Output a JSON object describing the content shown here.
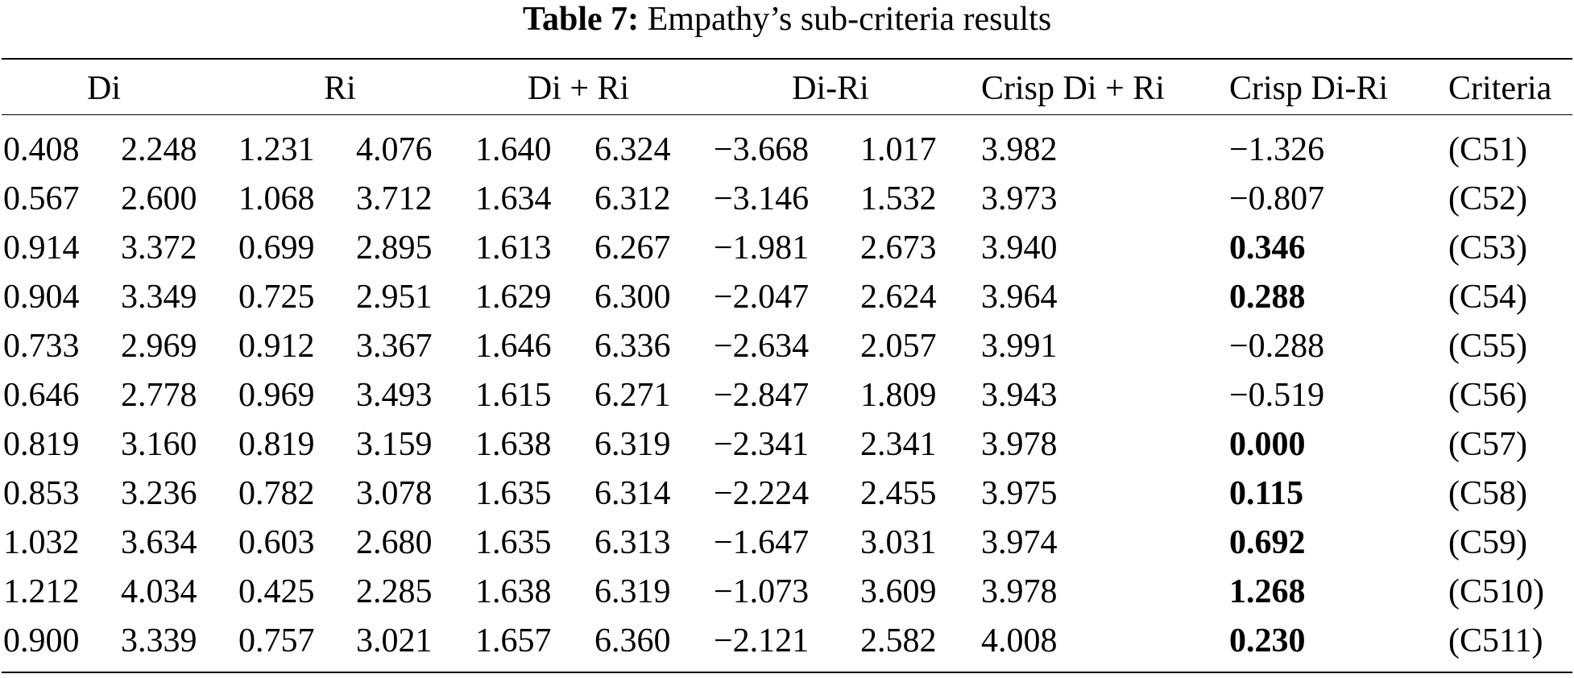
{
  "caption": {
    "label": "Table 7:",
    "text": "Empathy’s sub-criteria results"
  },
  "headers": [
    "Di",
    "Ri",
    "Di + Ri",
    "Di-Ri",
    "Crisp Di + Ri",
    "Crisp Di-Ri",
    "Criteria"
  ],
  "rows": [
    {
      "di": [
        "0.408",
        "2.248"
      ],
      "ri": [
        "1.231",
        "4.076"
      ],
      "dpr": [
        "1.640",
        "6.324"
      ],
      "dmr": [
        "−3.668",
        "1.017"
      ],
      "crisp_dpr": "3.982",
      "crisp_dmr": "−1.326",
      "crisp_dmr_bold": false,
      "criteria": "(C51)"
    },
    {
      "di": [
        "0.567",
        "2.600"
      ],
      "ri": [
        "1.068",
        "3.712"
      ],
      "dpr": [
        "1.634",
        "6.312"
      ],
      "dmr": [
        "−3.146",
        "1.532"
      ],
      "crisp_dpr": "3.973",
      "crisp_dmr": "−0.807",
      "crisp_dmr_bold": false,
      "criteria": "(C52)"
    },
    {
      "di": [
        "0.914",
        "3.372"
      ],
      "ri": [
        "0.699",
        "2.895"
      ],
      "dpr": [
        "1.613",
        "6.267"
      ],
      "dmr": [
        "−1.981",
        "2.673"
      ],
      "crisp_dpr": "3.940",
      "crisp_dmr": "0.346",
      "crisp_dmr_bold": true,
      "criteria": "(C53)"
    },
    {
      "di": [
        "0.904",
        "3.349"
      ],
      "ri": [
        "0.725",
        "2.951"
      ],
      "dpr": [
        "1.629",
        "6.300"
      ],
      "dmr": [
        "−2.047",
        "2.624"
      ],
      "crisp_dpr": "3.964",
      "crisp_dmr": "0.288",
      "crisp_dmr_bold": true,
      "criteria": "(C54)"
    },
    {
      "di": [
        "0.733",
        "2.969"
      ],
      "ri": [
        "0.912",
        "3.367"
      ],
      "dpr": [
        "1.646",
        "6.336"
      ],
      "dmr": [
        "−2.634",
        "2.057"
      ],
      "crisp_dpr": "3.991",
      "crisp_dmr": "−0.288",
      "crisp_dmr_bold": false,
      "criteria": "(C55)"
    },
    {
      "di": [
        "0.646",
        "2.778"
      ],
      "ri": [
        "0.969",
        "3.493"
      ],
      "dpr": [
        "1.615",
        "6.271"
      ],
      "dmr": [
        "−2.847",
        "1.809"
      ],
      "crisp_dpr": "3.943",
      "crisp_dmr": "−0.519",
      "crisp_dmr_bold": false,
      "criteria": "(C56)"
    },
    {
      "di": [
        "0.819",
        "3.160"
      ],
      "ri": [
        "0.819",
        "3.159"
      ],
      "dpr": [
        "1.638",
        "6.319"
      ],
      "dmr": [
        "−2.341",
        "2.341"
      ],
      "crisp_dpr": "3.978",
      "crisp_dmr": "0.000",
      "crisp_dmr_bold": true,
      "criteria": "(C57)"
    },
    {
      "di": [
        "0.853",
        "3.236"
      ],
      "ri": [
        "0.782",
        "3.078"
      ],
      "dpr": [
        "1.635",
        "6.314"
      ],
      "dmr": [
        "−2.224",
        "2.455"
      ],
      "crisp_dpr": "3.975",
      "crisp_dmr": "0.115",
      "crisp_dmr_bold": true,
      "criteria": "(C58)"
    },
    {
      "di": [
        "1.032",
        "3.634"
      ],
      "ri": [
        "0.603",
        "2.680"
      ],
      "dpr": [
        "1.635",
        "6.313"
      ],
      "dmr": [
        "−1.647",
        "3.031"
      ],
      "crisp_dpr": "3.974",
      "crisp_dmr": "0.692",
      "crisp_dmr_bold": true,
      "criteria": "(C59)"
    },
    {
      "di": [
        "1.212",
        "4.034"
      ],
      "ri": [
        "0.425",
        "2.285"
      ],
      "dpr": [
        "1.638",
        "6.319"
      ],
      "dmr": [
        "−1.073",
        "3.609"
      ],
      "crisp_dpr": "3.978",
      "crisp_dmr": "1.268",
      "crisp_dmr_bold": true,
      "criteria": "(C510)"
    },
    {
      "di": [
        "0.900",
        "3.339"
      ],
      "ri": [
        "0.757",
        "3.021"
      ],
      "dpr": [
        "1.657",
        "6.360"
      ],
      "dmr": [
        "−2.121",
        "2.582"
      ],
      "crisp_dpr": "4.008",
      "crisp_dmr": "0.230",
      "crisp_dmr_bold": true,
      "criteria": "(C511)"
    }
  ]
}
